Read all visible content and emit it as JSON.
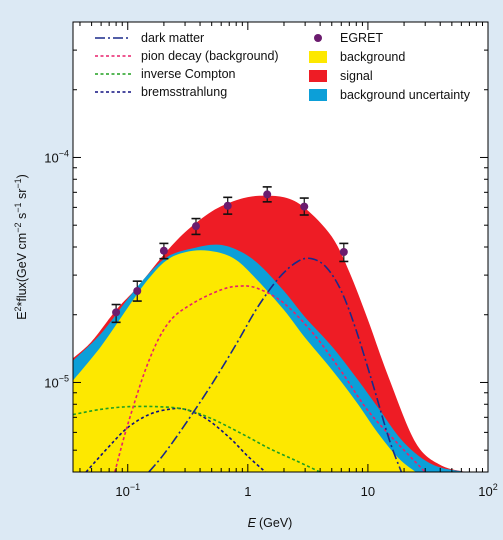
{
  "chart_data": {
    "type": "area",
    "title": "",
    "xlabel_symbol": "E",
    "xlabel_unit": "(GeV)",
    "ylabel_prefix": "E",
    "ylabel_sup1": "2",
    "ylabel_mid": "*flux(GeV cm",
    "ylabel_sup2": "−2",
    "ylabel_mid2": " s",
    "ylabel_sup3": "−1",
    "ylabel_mid3": " sr",
    "ylabel_sup4": "−1",
    "ylabel_end": ")",
    "x_scale": "log",
    "y_scale": "log",
    "xlim": [
      0.035,
      100
    ],
    "ylim": [
      4e-06,
      0.0004
    ],
    "x_ticks": [
      {
        "value": 0.1,
        "base": "10",
        "exp": "−1"
      },
      {
        "value": 1,
        "base": "1",
        "exp": ""
      },
      {
        "value": 10,
        "base": "10",
        "exp": ""
      },
      {
        "value": 100,
        "base": "10",
        "exp": "2"
      }
    ],
    "y_ticks": [
      {
        "value": 1e-05,
        "base": "10",
        "exp": "−5"
      },
      {
        "value": 0.0001,
        "base": "10",
        "exp": "−4"
      }
    ],
    "grid": false,
    "legend_position": "top",
    "colors": {
      "background": "#fde800",
      "signal": "#ee1c25",
      "uncertainty": "#0c9fd8",
      "egret": "#6b1b6e",
      "dark_matter": "#1a2a8a",
      "pion": "#e8206c",
      "ic": "#20a020",
      "brems": "#101080"
    },
    "legend": {
      "dark_matter": "dark matter",
      "pion": "pion decay (background)",
      "ic": "inverse Compton",
      "brems": "bremsstrahlung",
      "egret": "EGRET",
      "background": "background",
      "signal": "signal",
      "uncertainty": "background uncertainty"
    },
    "egret_points": [
      {
        "x": 0.08,
        "y": 2.05e-05,
        "ylo": 1.85e-05,
        "yhi": 2.22e-05
      },
      {
        "x": 0.12,
        "y": 2.55e-05,
        "ylo": 2.3e-05,
        "yhi": 2.82e-05
      },
      {
        "x": 0.2,
        "y": 3.85e-05,
        "ylo": 3.55e-05,
        "yhi": 4.15e-05
      },
      {
        "x": 0.37,
        "y": 4.95e-05,
        "ylo": 4.55e-05,
        "yhi": 5.35e-05
      },
      {
        "x": 0.68,
        "y": 6.1e-05,
        "ylo": 5.6e-05,
        "yhi": 6.65e-05
      },
      {
        "x": 1.45,
        "y": 6.85e-05,
        "ylo": 6.35e-05,
        "yhi": 7.4e-05
      },
      {
        "x": 2.95,
        "y": 6.05e-05,
        "ylo": 5.55e-05,
        "yhi": 6.6e-05
      },
      {
        "x": 6.3,
        "y": 3.8e-05,
        "ylo": 3.45e-05,
        "yhi": 4.15e-05
      }
    ],
    "signal_upper": [
      [
        0.035,
        1.28e-05
      ],
      [
        0.05,
        1.52e-05
      ],
      [
        0.08,
        2.1e-05
      ],
      [
        0.12,
        2.65e-05
      ],
      [
        0.2,
        3.7e-05
      ],
      [
        0.3,
        4.65e-05
      ],
      [
        0.5,
        5.75e-05
      ],
      [
        0.8,
        6.45e-05
      ],
      [
        1.2,
        6.75e-05
      ],
      [
        2,
        6.65e-05
      ],
      [
        3,
        5.95e-05
      ],
      [
        5,
        4.45e-05
      ],
      [
        7,
        3.1e-05
      ],
      [
        10,
        1.9e-05
      ],
      [
        15,
        1.04e-05
      ],
      [
        25,
        5.4e-06
      ],
      [
        40,
        4.3e-06
      ],
      [
        65,
        4e-06
      ]
    ],
    "uncertainty_upper": [
      [
        0.035,
        1.25e-05
      ],
      [
        0.06,
        1.65e-05
      ],
      [
        0.1,
        2.35e-05
      ],
      [
        0.15,
        3.05e-05
      ],
      [
        0.22,
        3.65e-05
      ],
      [
        0.35,
        3.95e-05
      ],
      [
        0.55,
        4.1e-05
      ],
      [
        0.8,
        3.9e-05
      ],
      [
        1.2,
        3.4e-05
      ],
      [
        2,
        2.55e-05
      ],
      [
        3,
        1.95e-05
      ],
      [
        5,
        1.45e-05
      ],
      [
        8,
        1.05e-05
      ],
      [
        12,
        7.8e-06
      ],
      [
        20,
        5.4e-06
      ],
      [
        35,
        4.3e-06
      ],
      [
        65,
        4e-06
      ]
    ],
    "background_upper": [
      [
        0.035,
        1.02e-05
      ],
      [
        0.06,
        1.45e-05
      ],
      [
        0.1,
        2.15e-05
      ],
      [
        0.15,
        2.9e-05
      ],
      [
        0.22,
        3.55e-05
      ],
      [
        0.35,
        3.85e-05
      ],
      [
        0.55,
        3.8e-05
      ],
      [
        0.8,
        3.5e-05
      ],
      [
        1.2,
        2.85e-05
      ],
      [
        2,
        2.1e-05
      ],
      [
        3,
        1.58e-05
      ],
      [
        5,
        1.14e-05
      ],
      [
        8,
        8.2e-06
      ],
      [
        12,
        6e-06
      ],
      [
        18,
        4.6e-06
      ],
      [
        25,
        4e-06
      ]
    ],
    "dark_matter": [
      [
        0.15,
        4e-06
      ],
      [
        0.2,
        4.8e-06
      ],
      [
        0.3,
        6.5e-06
      ],
      [
        0.5,
        9.8e-06
      ],
      [
        0.8,
        1.48e-05
      ],
      [
        1.2,
        2.15e-05
      ],
      [
        1.8,
        2.9e-05
      ],
      [
        2.6,
        3.45e-05
      ],
      [
        3.4,
        3.55e-05
      ],
      [
        4.5,
        3.25e-05
      ],
      [
        6,
        2.55e-05
      ],
      [
        8,
        1.7e-05
      ],
      [
        11,
        9.8e-06
      ],
      [
        15,
        5.6e-06
      ],
      [
        19,
        4e-06
      ]
    ],
    "pion": [
      [
        0.078,
        4e-06
      ],
      [
        0.1,
        6.5e-06
      ],
      [
        0.15,
        1.25e-05
      ],
      [
        0.22,
        1.85e-05
      ],
      [
        0.35,
        2.25e-05
      ],
      [
        0.6,
        2.58e-05
      ],
      [
        0.85,
        2.68e-05
      ],
      [
        1.2,
        2.62e-05
      ],
      [
        2,
        2.25e-05
      ],
      [
        3.5,
        1.65e-05
      ],
      [
        6,
        1.12e-05
      ],
      [
        10,
        7.5e-06
      ],
      [
        18,
        5.3e-06
      ],
      [
        30,
        4e-06
      ]
    ],
    "ic": [
      [
        0.035,
        7.2e-06
      ],
      [
        0.06,
        7.6e-06
      ],
      [
        0.1,
        7.8e-06
      ],
      [
        0.18,
        7.8e-06
      ],
      [
        0.3,
        7.6e-06
      ],
      [
        0.5,
        6.9e-06
      ],
      [
        0.9,
        5.9e-06
      ],
      [
        1.5,
        5.1e-06
      ],
      [
        2.5,
        4.5e-06
      ],
      [
        4,
        4e-06
      ]
    ],
    "brems": [
      [
        0.045,
        4e-06
      ],
      [
        0.07,
        5.2e-06
      ],
      [
        0.1,
        6.3e-06
      ],
      [
        0.15,
        7.2e-06
      ],
      [
        0.22,
        7.6e-06
      ],
      [
        0.3,
        7.6e-06
      ],
      [
        0.45,
        6.9e-06
      ],
      [
        0.7,
        5.7e-06
      ],
      [
        1,
        4.7e-06
      ],
      [
        1.4,
        4e-06
      ]
    ]
  }
}
